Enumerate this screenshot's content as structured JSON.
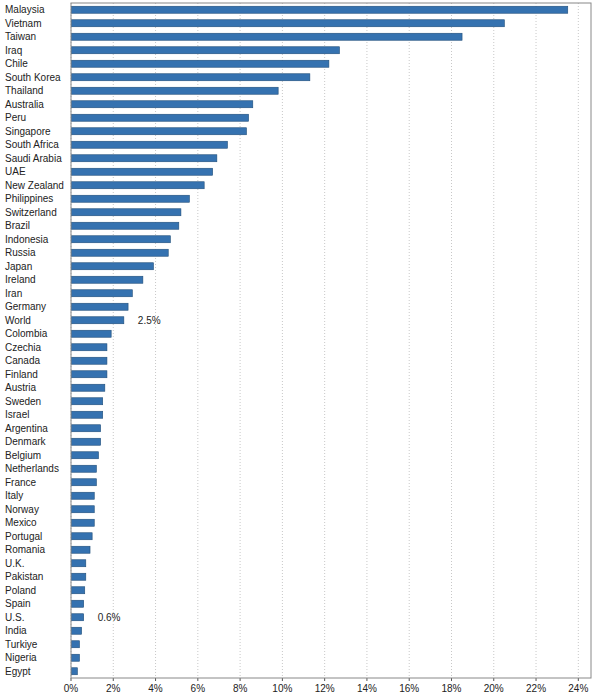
{
  "chart_data": {
    "type": "bar",
    "orientation": "horizontal",
    "grid": true,
    "color": "#3572b0",
    "categories": [
      "Malaysia",
      "Vietnam",
      "Taiwan",
      "Iraq",
      "Chile",
      "South Korea",
      "Thailand",
      "Australia",
      "Peru",
      "Singapore",
      "South Africa",
      "Saudi Arabia",
      "UAE",
      "New Zealand",
      "Philippines",
      "Switzerland",
      "Brazil",
      "Indonesia",
      "Russia",
      "Japan",
      "Ireland",
      "Iran",
      "Germany",
      "World",
      "Colombia",
      "Czechia",
      "Canada",
      "Finland",
      "Austria",
      "Sweden",
      "Israel",
      "Argentina",
      "Denmark",
      "Belgium",
      "Netherlands",
      "France",
      "Italy",
      "Norway",
      "Mexico",
      "Portugal",
      "Romania",
      "U.K.",
      "Pakistan",
      "Poland",
      "Spain",
      "U.S.",
      "India",
      "Turkiye",
      "Nigeria",
      "Egypt"
    ],
    "values": [
      23.5,
      20.5,
      18.5,
      12.7,
      12.2,
      11.3,
      9.8,
      8.6,
      8.4,
      8.3,
      7.4,
      6.9,
      6.7,
      6.3,
      5.6,
      5.2,
      5.1,
      4.7,
      4.6,
      3.9,
      3.4,
      2.9,
      2.7,
      2.5,
      1.9,
      1.7,
      1.7,
      1.7,
      1.6,
      1.5,
      1.5,
      1.4,
      1.4,
      1.3,
      1.2,
      1.2,
      1.1,
      1.1,
      1.1,
      1.0,
      0.9,
      0.7,
      0.7,
      0.65,
      0.6,
      0.6,
      0.5,
      0.4,
      0.4,
      0.3
    ],
    "value_labels": [
      null,
      null,
      null,
      null,
      null,
      null,
      null,
      null,
      null,
      null,
      null,
      null,
      null,
      null,
      null,
      null,
      null,
      null,
      null,
      null,
      null,
      null,
      null,
      "2.5%",
      null,
      null,
      null,
      null,
      null,
      null,
      null,
      null,
      null,
      null,
      null,
      null,
      null,
      null,
      null,
      null,
      null,
      null,
      null,
      null,
      null,
      "0.6%",
      null,
      null,
      null,
      null
    ],
    "xlim": [
      0,
      24.6
    ],
    "xticks": [
      {
        "value": 0,
        "label": "0%"
      },
      {
        "value": 2,
        "label": "2%"
      },
      {
        "value": 4,
        "label": "4%"
      },
      {
        "value": 6,
        "label": "6%"
      },
      {
        "value": 8,
        "label": "8%"
      },
      {
        "value": 10,
        "label": "10%"
      },
      {
        "value": 12,
        "label": "12%"
      },
      {
        "value": 14,
        "label": "14%"
      },
      {
        "value": 16,
        "label": "16%"
      },
      {
        "value": 18,
        "label": "18%"
      },
      {
        "value": 20,
        "label": "20%"
      },
      {
        "value": 22,
        "label": "22%"
      },
      {
        "value": 24,
        "label": "24%"
      }
    ]
  }
}
